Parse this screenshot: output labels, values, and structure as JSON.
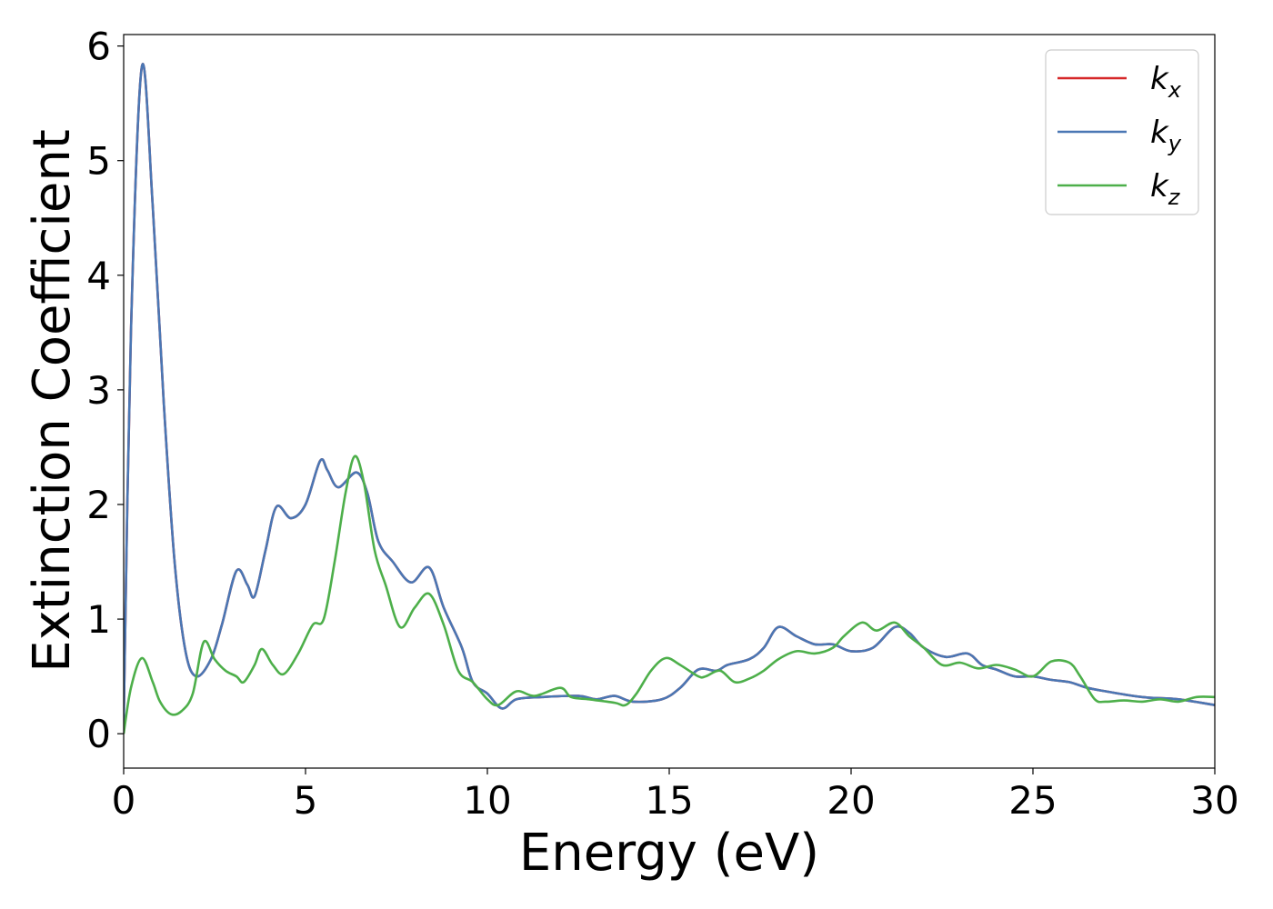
{
  "chart_data": {
    "type": "line",
    "xlabel": "Energy (eV)",
    "ylabel": "Extinction Coefficient",
    "xlim": [
      0,
      30
    ],
    "ylim": [
      -0.3,
      6.1
    ],
    "xticks": [
      0,
      5,
      10,
      15,
      20,
      25,
      30
    ],
    "yticks": [
      0,
      1,
      2,
      3,
      4,
      5,
      6
    ],
    "grid": false,
    "legend_position": "top-right",
    "series": [
      {
        "name": "k",
        "subscript": "x",
        "color": "#d62728",
        "points": [
          [
            0,
            0.1
          ],
          [
            0.2,
            3.5
          ],
          [
            0.5,
            5.82
          ],
          [
            0.8,
            4.6
          ],
          [
            1.1,
            2.9
          ],
          [
            1.4,
            1.5
          ],
          [
            1.7,
            0.72
          ],
          [
            2.0,
            0.5
          ],
          [
            2.4,
            0.65
          ],
          [
            2.7,
            0.95
          ],
          [
            3.1,
            1.42
          ],
          [
            3.4,
            1.3
          ],
          [
            3.6,
            1.2
          ],
          [
            3.9,
            1.6
          ],
          [
            4.2,
            1.98
          ],
          [
            4.6,
            1.88
          ],
          [
            5.0,
            2.0
          ],
          [
            5.4,
            2.38
          ],
          [
            5.6,
            2.3
          ],
          [
            5.9,
            2.15
          ],
          [
            6.4,
            2.28
          ],
          [
            6.7,
            2.1
          ],
          [
            7.0,
            1.68
          ],
          [
            7.4,
            1.5
          ],
          [
            7.9,
            1.32
          ],
          [
            8.4,
            1.45
          ],
          [
            8.8,
            1.1
          ],
          [
            9.3,
            0.75
          ],
          [
            9.6,
            0.45
          ],
          [
            10.0,
            0.35
          ],
          [
            10.4,
            0.22
          ],
          [
            10.8,
            0.3
          ],
          [
            11.5,
            0.32
          ],
          [
            12.5,
            0.33
          ],
          [
            13.0,
            0.3
          ],
          [
            13.5,
            0.33
          ],
          [
            14.0,
            0.28
          ],
          [
            14.8,
            0.3
          ],
          [
            15.3,
            0.4
          ],
          [
            15.8,
            0.56
          ],
          [
            16.3,
            0.55
          ],
          [
            16.6,
            0.6
          ],
          [
            17.2,
            0.65
          ],
          [
            17.6,
            0.75
          ],
          [
            18.0,
            0.93
          ],
          [
            18.5,
            0.85
          ],
          [
            19.0,
            0.78
          ],
          [
            19.5,
            0.78
          ],
          [
            20.0,
            0.72
          ],
          [
            20.6,
            0.75
          ],
          [
            21.2,
            0.93
          ],
          [
            21.6,
            0.88
          ],
          [
            22.0,
            0.75
          ],
          [
            22.6,
            0.67
          ],
          [
            23.2,
            0.7
          ],
          [
            23.6,
            0.6
          ],
          [
            24.0,
            0.56
          ],
          [
            24.5,
            0.5
          ],
          [
            25.0,
            0.5
          ],
          [
            25.5,
            0.47
          ],
          [
            26.0,
            0.45
          ],
          [
            26.5,
            0.4
          ],
          [
            27.0,
            0.37
          ],
          [
            28.0,
            0.32
          ],
          [
            29.0,
            0.3
          ],
          [
            30.0,
            0.25
          ]
        ]
      },
      {
        "name": "k",
        "subscript": "y",
        "color": "#4a77b4",
        "points": [
          [
            0,
            0.1
          ],
          [
            0.2,
            3.5
          ],
          [
            0.5,
            5.82
          ],
          [
            0.8,
            4.6
          ],
          [
            1.1,
            2.9
          ],
          [
            1.4,
            1.5
          ],
          [
            1.7,
            0.72
          ],
          [
            2.0,
            0.5
          ],
          [
            2.4,
            0.65
          ],
          [
            2.7,
            0.95
          ],
          [
            3.1,
            1.42
          ],
          [
            3.4,
            1.3
          ],
          [
            3.6,
            1.2
          ],
          [
            3.9,
            1.6
          ],
          [
            4.2,
            1.98
          ],
          [
            4.6,
            1.88
          ],
          [
            5.0,
            2.0
          ],
          [
            5.4,
            2.38
          ],
          [
            5.6,
            2.3
          ],
          [
            5.9,
            2.15
          ],
          [
            6.4,
            2.28
          ],
          [
            6.7,
            2.1
          ],
          [
            7.0,
            1.68
          ],
          [
            7.4,
            1.5
          ],
          [
            7.9,
            1.32
          ],
          [
            8.4,
            1.45
          ],
          [
            8.8,
            1.1
          ],
          [
            9.3,
            0.75
          ],
          [
            9.6,
            0.45
          ],
          [
            10.0,
            0.35
          ],
          [
            10.4,
            0.22
          ],
          [
            10.8,
            0.3
          ],
          [
            11.5,
            0.32
          ],
          [
            12.5,
            0.33
          ],
          [
            13.0,
            0.3
          ],
          [
            13.5,
            0.33
          ],
          [
            14.0,
            0.28
          ],
          [
            14.8,
            0.3
          ],
          [
            15.3,
            0.4
          ],
          [
            15.8,
            0.56
          ],
          [
            16.3,
            0.55
          ],
          [
            16.6,
            0.6
          ],
          [
            17.2,
            0.65
          ],
          [
            17.6,
            0.75
          ],
          [
            18.0,
            0.93
          ],
          [
            18.5,
            0.85
          ],
          [
            19.0,
            0.78
          ],
          [
            19.5,
            0.78
          ],
          [
            20.0,
            0.72
          ],
          [
            20.6,
            0.75
          ],
          [
            21.2,
            0.93
          ],
          [
            21.6,
            0.88
          ],
          [
            22.0,
            0.75
          ],
          [
            22.6,
            0.67
          ],
          [
            23.2,
            0.7
          ],
          [
            23.6,
            0.6
          ],
          [
            24.0,
            0.56
          ],
          [
            24.5,
            0.5
          ],
          [
            25.0,
            0.5
          ],
          [
            25.5,
            0.47
          ],
          [
            26.0,
            0.45
          ],
          [
            26.5,
            0.4
          ],
          [
            27.0,
            0.37
          ],
          [
            28.0,
            0.32
          ],
          [
            29.0,
            0.3
          ],
          [
            30.0,
            0.25
          ]
        ]
      },
      {
        "name": "k",
        "subscript": "z",
        "color": "#4daf4a",
        "points": [
          [
            0,
            0.0
          ],
          [
            0.2,
            0.4
          ],
          [
            0.5,
            0.66
          ],
          [
            0.8,
            0.45
          ],
          [
            1.0,
            0.28
          ],
          [
            1.3,
            0.17
          ],
          [
            1.6,
            0.2
          ],
          [
            1.9,
            0.35
          ],
          [
            2.2,
            0.8
          ],
          [
            2.5,
            0.65
          ],
          [
            2.8,
            0.55
          ],
          [
            3.1,
            0.5
          ],
          [
            3.3,
            0.45
          ],
          [
            3.6,
            0.6
          ],
          [
            3.8,
            0.74
          ],
          [
            4.1,
            0.6
          ],
          [
            4.4,
            0.52
          ],
          [
            4.8,
            0.7
          ],
          [
            5.2,
            0.95
          ],
          [
            5.5,
            1.0
          ],
          [
            5.8,
            1.5
          ],
          [
            6.1,
            2.1
          ],
          [
            6.35,
            2.42
          ],
          [
            6.6,
            2.2
          ],
          [
            6.9,
            1.6
          ],
          [
            7.2,
            1.3
          ],
          [
            7.6,
            0.93
          ],
          [
            8.0,
            1.1
          ],
          [
            8.4,
            1.22
          ],
          [
            8.8,
            0.95
          ],
          [
            9.2,
            0.55
          ],
          [
            9.6,
            0.45
          ],
          [
            10.0,
            0.3
          ],
          [
            10.3,
            0.25
          ],
          [
            10.8,
            0.37
          ],
          [
            11.3,
            0.33
          ],
          [
            12.0,
            0.4
          ],
          [
            12.3,
            0.32
          ],
          [
            12.8,
            0.3
          ],
          [
            13.5,
            0.27
          ],
          [
            13.8,
            0.25
          ],
          [
            14.1,
            0.35
          ],
          [
            14.5,
            0.55
          ],
          [
            14.9,
            0.66
          ],
          [
            15.3,
            0.6
          ],
          [
            15.8,
            0.5
          ],
          [
            16.0,
            0.5
          ],
          [
            16.4,
            0.55
          ],
          [
            16.8,
            0.45
          ],
          [
            17.2,
            0.48
          ],
          [
            17.6,
            0.55
          ],
          [
            18.0,
            0.65
          ],
          [
            18.5,
            0.72
          ],
          [
            19.0,
            0.7
          ],
          [
            19.5,
            0.75
          ],
          [
            19.8,
            0.85
          ],
          [
            20.3,
            0.97
          ],
          [
            20.7,
            0.9
          ],
          [
            21.2,
            0.97
          ],
          [
            21.6,
            0.85
          ],
          [
            22.0,
            0.75
          ],
          [
            22.5,
            0.6
          ],
          [
            23.0,
            0.62
          ],
          [
            23.5,
            0.57
          ],
          [
            24.0,
            0.6
          ],
          [
            24.5,
            0.56
          ],
          [
            25.0,
            0.5
          ],
          [
            25.5,
            0.63
          ],
          [
            26.0,
            0.62
          ],
          [
            26.3,
            0.5
          ],
          [
            26.7,
            0.3
          ],
          [
            27.0,
            0.28
          ],
          [
            27.5,
            0.29
          ],
          [
            28.0,
            0.28
          ],
          [
            28.5,
            0.3
          ],
          [
            29.0,
            0.28
          ],
          [
            29.5,
            0.32
          ],
          [
            30.0,
            0.32
          ]
        ]
      }
    ]
  }
}
